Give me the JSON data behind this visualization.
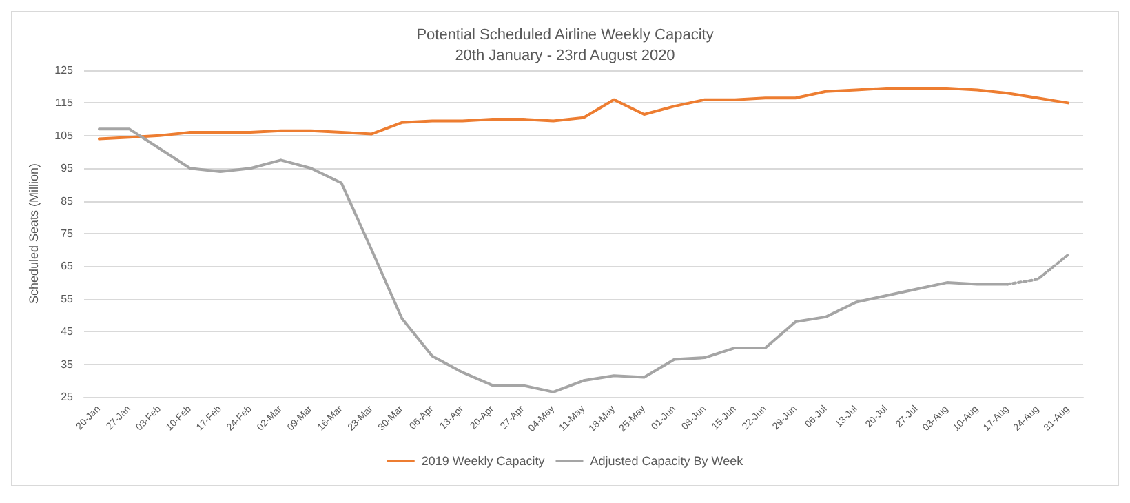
{
  "chart_data": {
    "type": "line",
    "title": "Potential Scheduled Airline Weekly Capacity",
    "subtitle": "20th January - 23rd August 2020",
    "ylabel": "Scheduled Seats (Million)",
    "categories": [
      "20-Jan",
      "27-Jan",
      "03-Feb",
      "10-Feb",
      "17-Feb",
      "24-Feb",
      "02-Mar",
      "09-Mar",
      "16-Mar",
      "23-Mar",
      "30-Mar",
      "06-Apr",
      "13-Apr",
      "20-Apr",
      "27-Apr",
      "04-May",
      "11-May",
      "18-May",
      "25-May",
      "01-Jun",
      "08-Jun",
      "15-Jun",
      "22-Jun",
      "29-Jun",
      "06-Jul",
      "13-Jul",
      "20-Jul",
      "27-Jul",
      "03-Aug",
      "10-Aug",
      "17-Aug",
      "24-Aug",
      "31-Aug"
    ],
    "series": [
      {
        "name": "2019 Weekly Capacity",
        "color": "#ed7d31",
        "values": [
          104,
          104.5,
          105,
          106,
          106,
          106,
          106.5,
          106.5,
          106,
          105.5,
          109,
          109.5,
          109.5,
          110,
          110,
          109.5,
          110.5,
          116,
          111.5,
          114,
          116,
          116,
          116.5,
          116.5,
          118.5,
          119,
          119.5,
          119.5,
          119.5,
          119,
          118,
          116.5,
          115
        ]
      },
      {
        "name": "Adjusted Capacity By Week",
        "color": "#a5a5a5",
        "values": [
          107,
          107,
          101,
          95,
          94,
          95,
          97.5,
          95,
          90.5,
          70,
          49,
          37.5,
          32.5,
          28.5,
          28.5,
          26.5,
          30,
          31.5,
          31,
          36.5,
          37,
          40,
          40,
          48,
          49.5,
          54,
          56,
          58,
          60,
          59.5,
          59.5,
          null,
          null
        ]
      },
      {
        "color": "#a5a5a5",
        "line_style": "dotted",
        "values": [
          null,
          null,
          null,
          null,
          null,
          null,
          null,
          null,
          null,
          null,
          null,
          null,
          null,
          null,
          null,
          null,
          null,
          null,
          null,
          null,
          null,
          null,
          null,
          null,
          null,
          null,
          null,
          null,
          null,
          null,
          59.5,
          61,
          68.5
        ]
      }
    ],
    "ylim": [
      25,
      125
    ],
    "yticks": [
      25,
      35,
      45,
      55,
      65,
      75,
      85,
      95,
      105,
      115,
      125
    ],
    "grid": "y",
    "legend": "bottom",
    "marker": "none",
    "line_style": "solid"
  }
}
